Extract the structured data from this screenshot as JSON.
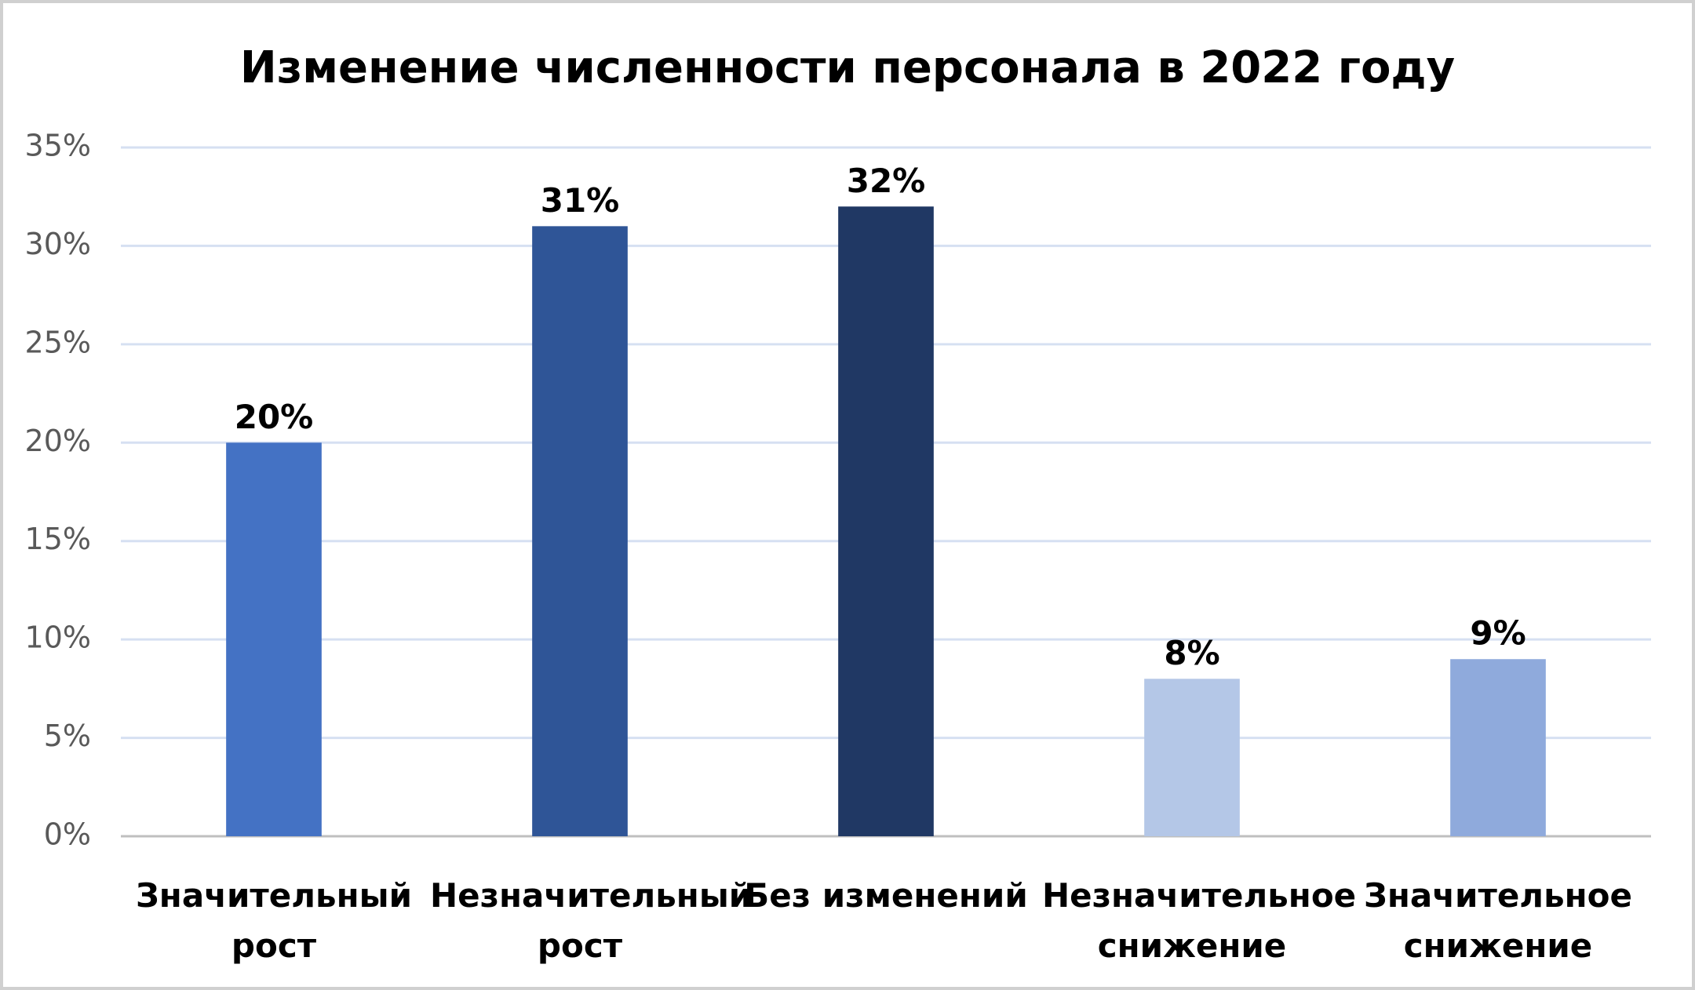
{
  "chart_data": {
    "type": "bar",
    "title": "Изменение численности персонала в 2022 году",
    "categories": [
      "Значительный рост",
      "Незначительный рост",
      "Без изменений",
      "Незначительное снижение",
      "Значительное снижение"
    ],
    "values": [
      20,
      31,
      32,
      8,
      9
    ],
    "value_labels": [
      "20%",
      "31%",
      "32%",
      "8%",
      "9%"
    ],
    "colors": [
      "#4472c4",
      "#2f5597",
      "#203864",
      "#b4c7e7",
      "#8faadc"
    ],
    "ylim": [
      0,
      35
    ],
    "yticks": [
      {
        "value": 0,
        "label": "0%"
      },
      {
        "value": 5,
        "label": "5%"
      },
      {
        "value": 10,
        "label": "10%"
      },
      {
        "value": 15,
        "label": "15%"
      },
      {
        "value": 20,
        "label": "20%"
      },
      {
        "value": 25,
        "label": "25%"
      },
      {
        "value": 30,
        "label": "30%"
      },
      {
        "value": 35,
        "label": "35%"
      }
    ],
    "grid": true
  }
}
